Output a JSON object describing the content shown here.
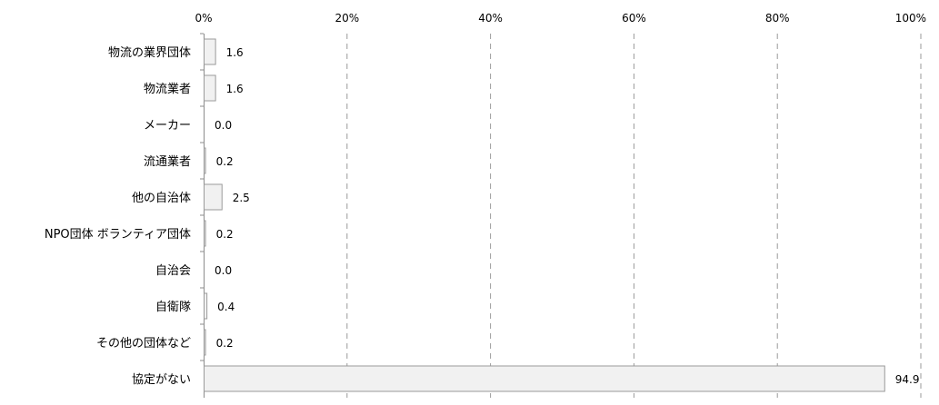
{
  "chart_data": {
    "type": "bar",
    "orientation": "horizontal",
    "categories": [
      "物流の業界団体",
      "物流業者",
      "メーカー",
      "流通業者",
      "他の自治体",
      "NPO団体 ボランティア団体",
      "自治会",
      "自衛隊",
      "その他の団体など",
      "協定がない"
    ],
    "values": [
      1.6,
      1.6,
      0.0,
      0.2,
      2.5,
      0.2,
      0.0,
      0.4,
      0.2,
      94.9
    ],
    "value_labels": [
      "1.6",
      "1.6",
      "0.0",
      "0.2",
      "2.5",
      "0.2",
      "0.0",
      "0.4",
      "0.2",
      "94.9"
    ],
    "x_ticks": [
      "0%",
      "20%",
      "40%",
      "60%",
      "80%",
      "100%"
    ],
    "xlim": [
      0,
      100
    ],
    "title": "",
    "xlabel": "",
    "ylabel": "",
    "grid": true,
    "legend": "none",
    "colors": {
      "bar_fill": "#f1f1f1",
      "bar_stroke": "#9a9a9a",
      "grid": "#9a9a9a",
      "axis": "#8c8c8c"
    }
  }
}
